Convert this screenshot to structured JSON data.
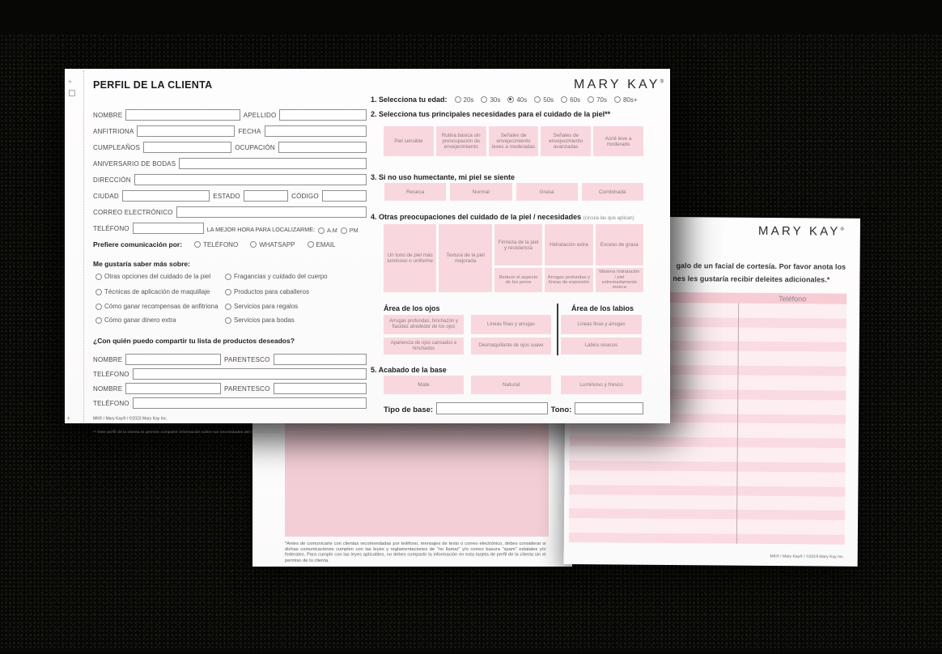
{
  "colors": {
    "accent_pink": "#f8d8de",
    "table_header_pink": "#f7ccd5",
    "row_pink": "#fadbe2",
    "row_pale": "#fdeef1",
    "big_rect_pink": "#f4ced6",
    "background": "#070705"
  },
  "sheet1": {
    "margin": {
      "plus_top": "+",
      "plus_bottom": "+",
      "dots": ":·"
    },
    "title": "PERFIL DE LA CLIENTA",
    "logo": {
      "text": "MARY KAY",
      "reg": "®"
    },
    "left": {
      "fields": {
        "nombre": "NOMBRE",
        "apellido": "APELLIDO",
        "anfitriona": "ANFITRIONA",
        "fecha": "FECHA",
        "cumpleanos": "CUMPLEAÑOS",
        "ocupacion": "OCUPACIÓN",
        "aniversario": "ANIVERSARIO DE BODAS",
        "direccion": "DIRECCIÓN",
        "ciudad": "CIUDAD",
        "estado": "ESTADO",
        "codigo": "CÓDIGO",
        "correo": "CORREO ELECTRÓNICO",
        "telefono": "TELÉFONO",
        "parentesco": "PARENTESCO"
      },
      "best_time_label": "LA MEJOR HORA PARA LOCALIZARME:",
      "am": "A.M",
      "pm": "PM",
      "prefer": {
        "label": "Prefiere comunicación por:",
        "options": [
          "TELÉFONO",
          "WHATSAPP",
          "EMAIL"
        ]
      },
      "learn": {
        "label": "Me gustaría saber más sobre:",
        "col1": [
          "Otras opciones del cuidado de la piel",
          "Técnicas de aplicación de maquillaje",
          "Cómo ganar recompensas de anfitriona",
          "Cómo ganar dinero extra"
        ],
        "col2": [
          "Fragancias y cuidado del cuerpo",
          "Productos para caballeros",
          "Servicios para regalos",
          "Servicios para bodas"
        ]
      },
      "share_label": "¿Con quién puedo compartir tu lista de productos deseados?",
      "footer_line1": "MK® / Mary Kay® / ©2023 Mary Kay Inc.",
      "footer_line2": "** Este perfil de la clienta te permite compartir información sobre tus necesidades del cuidado de la piel y preferencias de cosméticos con tu Consultora de Belleza Independiente (CBI). Recuerda mantener esta información confidencial."
    },
    "right": {
      "q1": {
        "label": "1. Selecciona tu edad:",
        "options": [
          "20s",
          "30s",
          "40s",
          "50s",
          "60s",
          "70s",
          "80s+"
        ],
        "selected": "40s",
        "selected_index": 2
      },
      "q2": {
        "label": "2. Selecciona tus principales necesidades para el cuidado de la piel**",
        "boxes": [
          "Piel sensible",
          "Rutina básica sin preocupación de envejecimiento",
          "Señales de envejecimiento leves a moderadas",
          "Señales de envejecimiento avanzadas",
          "Acné leve a moderado"
        ]
      },
      "q3": {
        "label": "3. Si no uso humectante, mi piel se siente",
        "boxes": [
          "Reseca",
          "Normal",
          "Grasa",
          "Combinada"
        ]
      },
      "q4": {
        "label": "4. Otras preocupaciones del cuidado de la piel / necesidades",
        "note": "(circula las que aplican)",
        "tall": [
          "Un tono de piel más luminoso o uniforme",
          "Textura de la piel mejorada"
        ],
        "stacked": [
          {
            "top": "Firmeza de la piel y resistencia",
            "bottom": "Reducir el aspecto de los poros"
          },
          {
            "top": "Hidratación extra",
            "bottom": "Arrugas profundas y líneas de expresión"
          },
          {
            "top": "Exceso de grasa",
            "bottom": "Máxima hidratación / piel extremadamente reseca"
          }
        ]
      },
      "eyes": {
        "label": "Área de los ojos",
        "boxes": [
          "Arrugas profundas, hinchazón y flacidez alrededor de los ojos",
          "Líneas finas y arrugas",
          "Apariencia de ojos cansados e hinchados",
          "Desmaquillante de ojos suave"
        ]
      },
      "lips": {
        "label": "Área de los labios",
        "boxes": [
          "Líneas finas y arrugas",
          "Labios resecos"
        ]
      },
      "q5": {
        "label": "5. Acabado de la base",
        "boxes": [
          "Mate",
          "Natural",
          "Luminoso y fresco"
        ]
      },
      "base_label": "Tipo de base:",
      "tone_label": "Tono:"
    }
  },
  "sheet2": {
    "logo": {
      "text": "MARY KAY",
      "reg": "®"
    },
    "intro_line1": "galo de un facial de cortesía.  Por favor anota los",
    "intro_line2": "nes les gustaría recibir deleites adicionales.*",
    "table": {
      "phone_header": "Teléfono",
      "row_pairs": 10
    },
    "footer": "MK® / Mary Kay® / ©2019 Mary Kay Inc."
  },
  "sheet3": {
    "disclaimer": "*Antes de comunicarte con clientas recomendadas por teléfono, mensajes de texto o correo electrónico, debes considerar si dichas comunicaciones cumplen con las leyes y reglamentaciones de \"no llamar\" y/o correo basura \"spam\" estatales y/o federales.  Para cumplir con las leyes aplicables, no debes compartir la información en esta tarjeta de perfil de la clienta sin el permiso de tu clienta."
  }
}
